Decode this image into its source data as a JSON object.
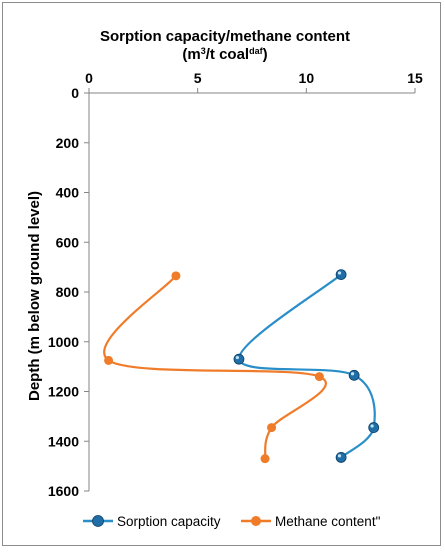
{
  "chart_data": {
    "type": "line",
    "title": "Sorption capacity/methane content",
    "xlabel": {
      "prefix": "(m",
      "sup1": "3",
      "middle": "/t coal",
      "sup2": "daf",
      "suffix": ")"
    },
    "ylabel": "Depth (m below ground level)",
    "xlim": [
      0,
      15
    ],
    "ylim": [
      0,
      1600
    ],
    "y_inverted": true,
    "x_axis_position": "top",
    "x_ticks": [
      0,
      5,
      10,
      15
    ],
    "y_ticks": [
      0,
      200,
      400,
      600,
      800,
      1000,
      1200,
      1400,
      1600
    ],
    "x_tick_labels": [
      "0",
      "5",
      "10",
      "15"
    ],
    "y_tick_labels": [
      "0",
      "200",
      "400",
      "600",
      "800",
      "1000",
      "1200",
      "1400",
      "1600"
    ],
    "grid": false,
    "legend_position": "bottom",
    "series": [
      {
        "name": "Sorption capacity",
        "color": "#2a8fc8",
        "marker_color": "#1f6ea8",
        "points": [
          {
            "x": 11.6,
            "y": 730
          },
          {
            "x": 6.9,
            "y": 1070
          },
          {
            "x": 12.2,
            "y": 1135
          },
          {
            "x": 13.1,
            "y": 1345
          },
          {
            "x": 11.6,
            "y": 1465
          }
        ]
      },
      {
        "name": "Methane content\"",
        "color": "#f07c2a",
        "marker_color": "#f07c2a",
        "points": [
          {
            "x": 4.0,
            "y": 735
          },
          {
            "x": 0.9,
            "y": 1075
          },
          {
            "x": 10.6,
            "y": 1140
          },
          {
            "x": 8.4,
            "y": 1345
          },
          {
            "x": 8.1,
            "y": 1470
          }
        ]
      }
    ]
  }
}
